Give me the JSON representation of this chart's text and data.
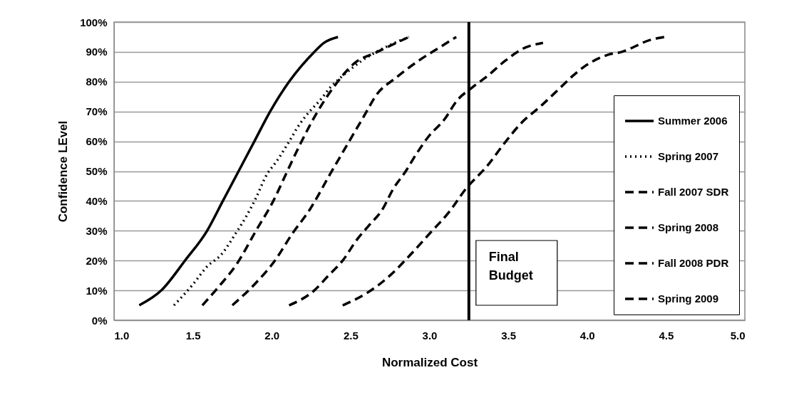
{
  "chart_data": {
    "type": "line",
    "xlabel": "Normalized Cost",
    "ylabel": "Confidence LEvel",
    "xlim": [
      1,
      5
    ],
    "xticks": [
      {
        "value": 1,
        "label": "1.0"
      },
      {
        "value": 1.5,
        "label": "1.5"
      },
      {
        "value": 2,
        "label": "2.0"
      },
      {
        "value": 2.5,
        "label": "2.5"
      },
      {
        "value": 3,
        "label": "3.0"
      },
      {
        "value": 3.5,
        "label": "3.5"
      },
      {
        "value": 4,
        "label": "4.0"
      },
      {
        "value": 4.5,
        "label": "4.5"
      },
      {
        "value": 5,
        "label": "5.0"
      }
    ],
    "ylim": [
      0,
      100
    ],
    "yticks": [
      {
        "value": 0,
        "label": "0%"
      },
      {
        "value": 10,
        "label": "10%"
      },
      {
        "value": 20,
        "label": "20%"
      },
      {
        "value": 30,
        "label": "30%"
      },
      {
        "value": 40,
        "label": "40%"
      },
      {
        "value": 50,
        "label": "50%"
      },
      {
        "value": 60,
        "label": "60%"
      },
      {
        "value": 70,
        "label": "70%"
      },
      {
        "value": 80,
        "label": "80%"
      },
      {
        "value": 90,
        "label": "90%"
      },
      {
        "value": 100,
        "label": "100%"
      }
    ],
    "grid": "y",
    "legend": "bottom right",
    "marker": "none",
    "ref_lines": [
      {
        "axis": "x",
        "value": 3.25,
        "label": "Final Budget",
        "color": "#000000",
        "line_style": "solid"
      }
    ],
    "series": [
      {
        "name": "Summer 2006",
        "color": "#000000",
        "line_style": "solid",
        "x": [
          1.16,
          1.3,
          1.45,
          1.59,
          1.69,
          1.79,
          1.89,
          1.99,
          2.11,
          2.27,
          2.33,
          2.42
        ],
        "values": [
          5,
          10,
          20,
          30,
          40,
          50,
          60,
          70,
          80,
          90,
          93,
          95
        ]
      },
      {
        "name": "Spring 2007",
        "color": "#000000",
        "line_style": "dotted",
        "x": [
          1.38,
          1.5,
          1.59,
          1.68,
          1.77,
          1.84,
          1.9,
          1.96,
          2.04,
          2.1,
          2.18,
          2.24,
          2.31,
          2.37,
          2.45,
          2.52,
          2.57,
          2.7,
          2.87
        ],
        "values": [
          5,
          12,
          18,
          22,
          29,
          35,
          41,
          48,
          54,
          59,
          66,
          70,
          74,
          78,
          82,
          85,
          87,
          91,
          95
        ]
      },
      {
        "name": "Fall 2007 SDR",
        "color": "#000000",
        "line_style": "dashed",
        "x": [
          1.56,
          1.66,
          1.78,
          1.9,
          2.01,
          2.09,
          2.18,
          2.28,
          2.39,
          2.52,
          2.67,
          2.87
        ],
        "values": [
          5,
          11,
          19,
          30,
          40,
          49,
          59,
          69,
          78,
          86,
          90,
          95
        ]
      },
      {
        "name": "Spring 2008",
        "color": "#000000",
        "line_style": "dashed",
        "x": [
          1.75,
          1.89,
          2.02,
          2.13,
          2.24,
          2.37,
          2.48,
          2.58,
          2.67,
          2.78,
          2.93,
          3.08,
          3.17
        ],
        "values": [
          5,
          12,
          20,
          29,
          37,
          49,
          59,
          68,
          76,
          81,
          87,
          92,
          95
        ]
      },
      {
        "name": "Fall 2008 PDR",
        "color": "#000000",
        "line_style": "dashed",
        "x": [
          2.11,
          2.27,
          2.36,
          2.45,
          2.54,
          2.62,
          2.7,
          2.77,
          2.85,
          2.92,
          3.0,
          3.09,
          3.18,
          3.27,
          3.37,
          3.48,
          3.59,
          3.72
        ],
        "values": [
          5,
          10,
          15,
          20,
          27,
          32,
          37,
          44,
          50,
          56,
          62,
          67,
          74,
          78,
          82,
          87,
          91,
          93
        ]
      },
      {
        "name": "Spring 2009",
        "color": "#000000",
        "line_style": "dashed",
        "x": [
          2.45,
          2.6,
          2.75,
          2.88,
          3.0,
          3.12,
          3.23,
          3.37,
          3.47,
          3.58,
          3.71,
          3.83,
          3.91,
          3.98,
          4.13,
          4.22,
          4.4,
          4.49
        ],
        "values": [
          5,
          9,
          15,
          22,
          29,
          36,
          44,
          52,
          59,
          66,
          72,
          78,
          82,
          85,
          89,
          90,
          94,
          95
        ]
      }
    ]
  }
}
